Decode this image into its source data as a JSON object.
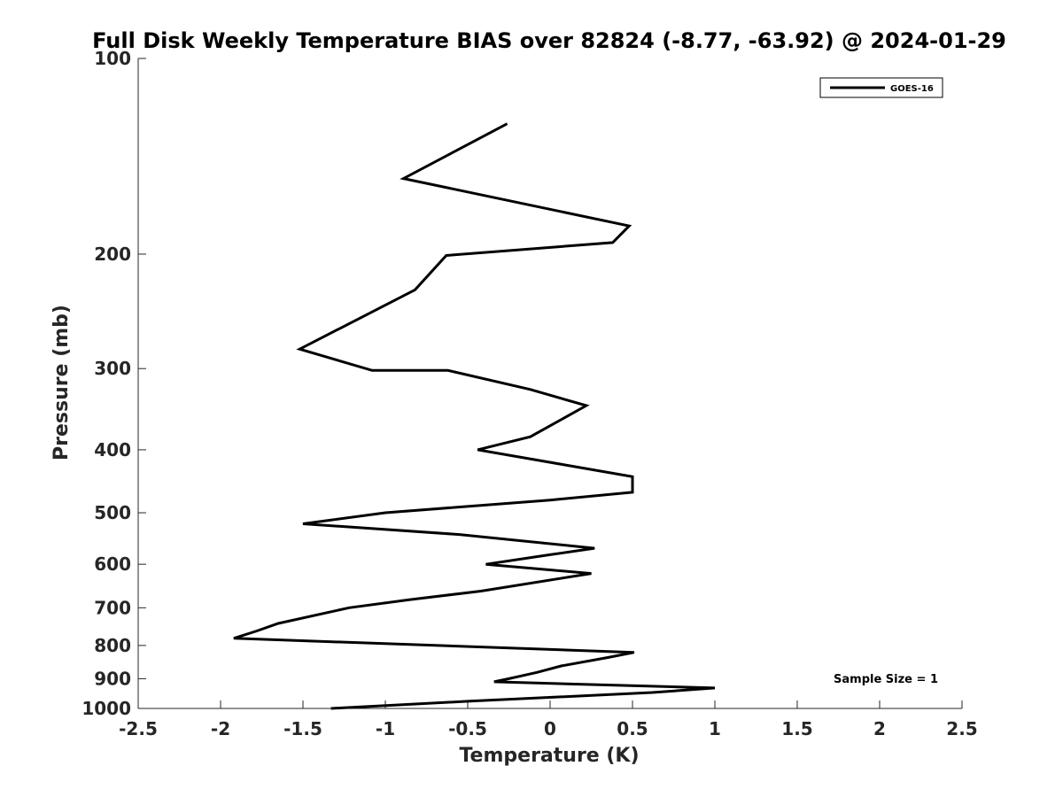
{
  "chart_data": {
    "type": "line",
    "title": "Full Disk Weekly Temperature BIAS over 82824 (-8.77, -63.92) @ 2024-01-29",
    "xlabel": "Temperature (K)",
    "ylabel": "Pressure (mb)",
    "xlim": [
      -2.5,
      2.5
    ],
    "ylim": [
      100,
      1000
    ],
    "y_scale": "log",
    "y_reversed": true,
    "xticks": [
      -2.5,
      -2,
      -1.5,
      -1,
      -0.5,
      0,
      0.5,
      1,
      1.5,
      2,
      2.5
    ],
    "xtick_labels": [
      "-2.5",
      "-2",
      "-1.5",
      "-1",
      "-0.5",
      "0",
      "0.5",
      "1",
      "1.5",
      "2",
      "2.5"
    ],
    "yticks": [
      100,
      200,
      300,
      400,
      500,
      600,
      700,
      800,
      900,
      1000
    ],
    "ytick_labels": [
      "100",
      "200",
      "300",
      "400",
      "500",
      "600",
      "700",
      "800",
      "900",
      "1000"
    ],
    "grid": false,
    "legend_position": "top-right",
    "series": [
      {
        "name": "GOES-16",
        "color": "#000000",
        "points": [
          {
            "x": -0.26,
            "p": 126
          },
          {
            "x": -0.89,
            "p": 153
          },
          {
            "x": 0.48,
            "p": 181
          },
          {
            "x": 0.38,
            "p": 192
          },
          {
            "x": -0.63,
            "p": 201
          },
          {
            "x": -0.82,
            "p": 227
          },
          {
            "x": -1.52,
            "p": 280
          },
          {
            "x": -1.08,
            "p": 302
          },
          {
            "x": -0.62,
            "p": 302
          },
          {
            "x": -0.12,
            "p": 323
          },
          {
            "x": 0.22,
            "p": 342
          },
          {
            "x": -0.12,
            "p": 382
          },
          {
            "x": -0.44,
            "p": 400
          },
          {
            "x": 0.09,
            "p": 422
          },
          {
            "x": 0.5,
            "p": 440
          },
          {
            "x": 0.5,
            "p": 465
          },
          {
            "x": 0.0,
            "p": 478
          },
          {
            "x": -1.0,
            "p": 500
          },
          {
            "x": -1.5,
            "p": 520
          },
          {
            "x": -0.55,
            "p": 540
          },
          {
            "x": 0.27,
            "p": 567
          },
          {
            "x": 0.0,
            "p": 580
          },
          {
            "x": -0.39,
            "p": 600
          },
          {
            "x": 0.25,
            "p": 620
          },
          {
            "x": -0.42,
            "p": 660
          },
          {
            "x": -0.85,
            "p": 680
          },
          {
            "x": -1.22,
            "p": 700
          },
          {
            "x": -1.65,
            "p": 740
          },
          {
            "x": -1.78,
            "p": 760
          },
          {
            "x": -1.92,
            "p": 780
          },
          {
            "x": 0.51,
            "p": 820
          },
          {
            "x": 0.35,
            "p": 835
          },
          {
            "x": 0.07,
            "p": 860
          },
          {
            "x": -0.08,
            "p": 880
          },
          {
            "x": -0.25,
            "p": 900
          },
          {
            "x": -0.34,
            "p": 910
          },
          {
            "x": 1.0,
            "p": 930
          },
          {
            "x": 0.62,
            "p": 945
          },
          {
            "x": -0.5,
            "p": 975
          },
          {
            "x": -1.33,
            "p": 1000
          }
        ]
      }
    ],
    "annotations": [
      "Sample Size = 1"
    ]
  }
}
